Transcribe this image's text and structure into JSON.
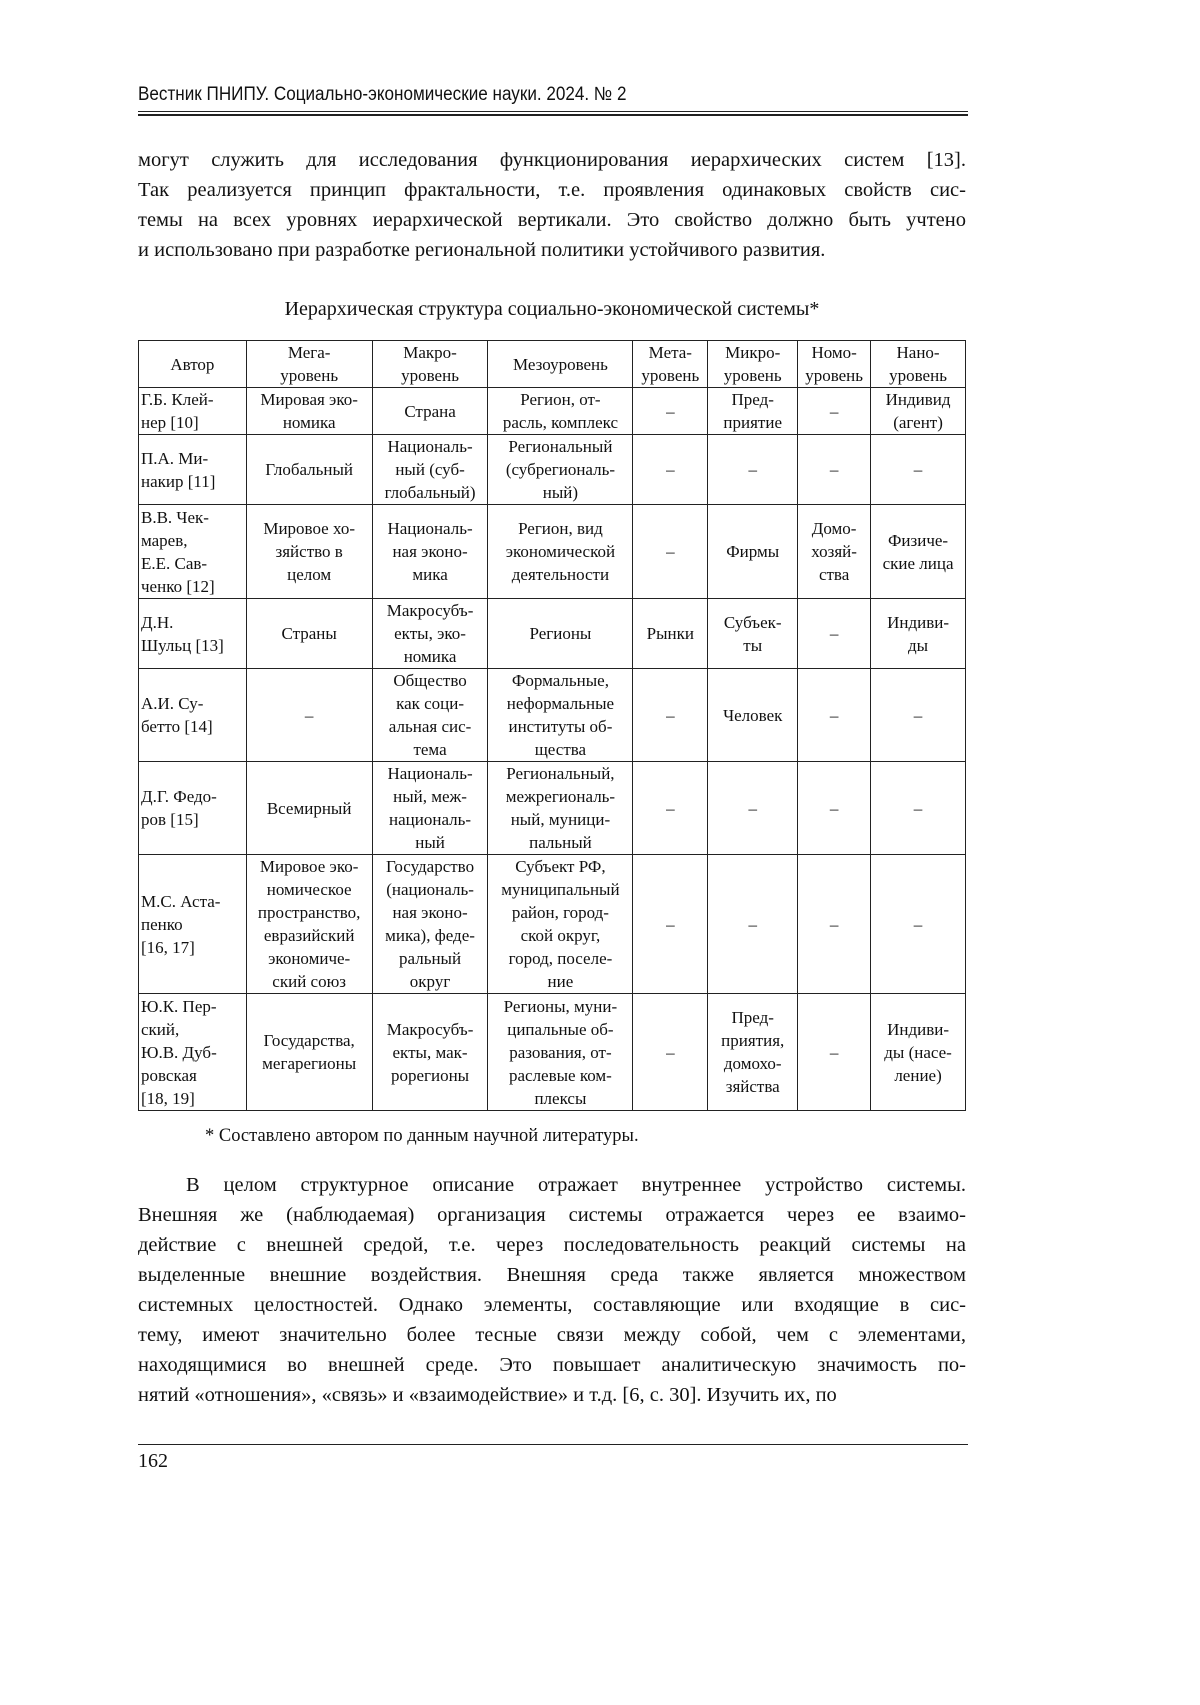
{
  "header": "Вестник ПНИПУ. Социально-экономические науки. 2024. № 2",
  "para1": [
    "могут служить для исследования функционирования иерархических систем [13].",
    "Так реализуется принцип фрактальности, т.е. проявления одинаковых свойств сис-",
    "темы на всех уровнях иерархической вертикали. Это свойство должно быть учтено",
    "и использовано при разработке региональной политики устойчивого развития."
  ],
  "table_caption": "Иерархическая структура социально-экономической системы*",
  "table": {
    "headers": [
      "Автор",
      "Мега-\nуровень",
      "Макро-\nуровень",
      "Мезоуровень",
      "Мета-\nуровень",
      "Микро-\nуровень",
      "Номо-\nуровень",
      "Нано-\nуровень"
    ],
    "rows": [
      [
        "Г.Б. Клей-\nнер [10]",
        "Мировая эко-\nномика",
        "Страна",
        "Регион, от-\nрасль, комплекс",
        "–",
        "Пред-\nприятие",
        "–",
        "Индивид\n(агент)"
      ],
      [
        "П.А. Ми-\nнакир [11]",
        "Глобальный",
        "Националь-\nный (суб-\nглобальный)",
        "Региональный\n(субрегиональ-\nный)",
        "–",
        "–",
        "–",
        "–"
      ],
      [
        "В.В. Чек-\nмарев,\nЕ.Е. Сав-\nченко [12]",
        "Мировое хо-\nзяйство в\nцелом",
        "Националь-\nная эконо-\nмика",
        "Регион, вид\nэкономической\nдеятельности",
        "–",
        "Фирмы",
        "Домо-\nхозяй-\nства",
        "Физиче-\nские лица"
      ],
      [
        "Д.Н.\nШульц [13]",
        "Страны",
        "Макросубъ-\nекты, эко-\nномика",
        "Регионы",
        "Рынки",
        "Субъек-\nты",
        "–",
        "Индиви-\nды"
      ],
      [
        "А.И. Су-\nбетто [14]",
        "–",
        "Общество\nкак соци-\nальная сис-\nтема",
        "Формальные,\nнеформальные\nинституты об-\nщества",
        "–",
        "Человек",
        "–",
        "–"
      ],
      [
        "Д.Г. Федо-\nров [15]",
        "Всемирный",
        "Националь-\nный, меж-\nнациональ-\nный",
        "Региональный,\nмежрегиональ-\nный, муници-\nпальный",
        "–",
        "–",
        "–",
        "–"
      ],
      [
        "М.С. Аста-\nпенко\n[16, 17]",
        "Мировое эко-\nномическое\nпространство,\nевразийский\nэкономиче-\nский союз",
        "Государство\n(националь-\nная эконо-\nмика), феде-\nральный\nокруг",
        "Субъект РФ,\nмуниципальный\nрайон, город-\nской округ,\nгород, поселе-\nние",
        "–",
        "–",
        "–",
        "–"
      ],
      [
        "Ю.К. Пер-\nский,\nЮ.В. Дуб-\nровская\n[18, 19]",
        "Государства,\nмегарегионы",
        "Макросубъ-\nекты, мак-\nрорегионы",
        "Регионы, муни-\nципальные об-\nразования, от-\nраслевые ком-\nплексы",
        "–",
        "Пред-\nприятия,\nдомохо-\nзяйства",
        "–",
        "Индиви-\nды (насе-\nление)"
      ]
    ]
  },
  "footnote": "* Составлено автором по данным научной литературы.",
  "para2": [
    "В целом структурное описание отражает внутреннее устройство системы.",
    "Внешняя же (наблюдаемая) организация системы отражается через ее взаимо-",
    "действие с внешней средой, т.е. через последовательность реакций системы на",
    "выделенные внешние воздействия. Внешняя среда также является множеством",
    "системных целостностей. Однако элементы, составляющие или входящие в сис-",
    "тему, имеют значительно более тесные связи между собой, чем с элементами,",
    "находящимися во внешней среде. Это повышает аналитическую значимость по-",
    "нятий «отношения», «связь» и «взаимодействие» и т.д. [6, с. 30]. Изучить их, по"
  ],
  "page_number": "162"
}
